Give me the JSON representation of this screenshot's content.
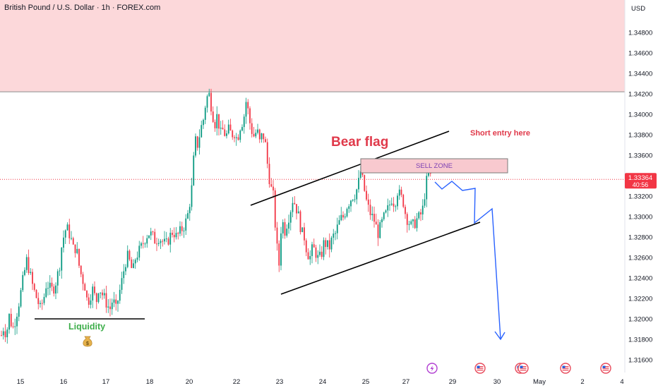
{
  "header": {
    "title": "British Pound / U.S. Dollar · 1h · FOREX.com"
  },
  "currency": "USD",
  "price_tag": {
    "price": "1.33364",
    "countdown": "40:56"
  },
  "annotations": {
    "bear_flag": "Bear flag",
    "short_entry": "Short entry here",
    "sell_zone": "SELL ZONE",
    "liquidity": "Liquidity"
  },
  "colors": {
    "up": "#089981",
    "down": "#f23645",
    "resistance_zone": "#fcd8da",
    "sell_zone_fill": "#f8c9cf",
    "projection": "#2962ff",
    "bear_flag_text": "#e0394a",
    "liquidity_text": "#3dae4a",
    "price_tag_bg": "#f23645"
  },
  "icons": {
    "liquidity": "money-bag-icon",
    "events": [
      "lightning-event-icon",
      "us-flag-event-icon",
      "us-flag-event-icon",
      "us-flag-event-icon",
      "us-flag-event-icon",
      "us-flag-event-icon"
    ]
  },
  "chart_data": {
    "type": "candlestick",
    "ylim": [
      1.3145,
      1.35
    ],
    "y_ticks": [
      "1.34800",
      "1.34600",
      "1.34400",
      "1.34200",
      "1.34000",
      "1.33800",
      "1.33600",
      "1.33200",
      "1.33000",
      "1.32800",
      "1.32600",
      "1.32400",
      "1.32200",
      "1.32000",
      "1.31800",
      "1.31600"
    ],
    "x_ticks": [
      "15",
      "16",
      "17",
      "18",
      "20",
      "22",
      "23",
      "24",
      "25",
      "27",
      "29",
      "30",
      "May",
      "2",
      "4"
    ],
    "resistance_zone": [
      1.3422,
      1.35
    ],
    "current_price": 1.33364,
    "anchors": [
      [
        0,
        1.3176
      ],
      [
        4,
        1.3192
      ],
      [
        9,
        1.3185
      ],
      [
        13,
        1.3203
      ],
      [
        18,
        1.319
      ],
      [
        22,
        1.32
      ],
      [
        28,
        1.322
      ],
      [
        33,
        1.324
      ],
      [
        38,
        1.3258
      ],
      [
        42,
        1.3245
      ],
      [
        47,
        1.323
      ],
      [
        52,
        1.322
      ],
      [
        57,
        1.321
      ],
      [
        62,
        1.322
      ],
      [
        66,
        1.3236
      ],
      [
        70,
        1.323
      ],
      [
        75,
        1.3228
      ],
      [
        79,
        1.3236
      ],
      [
        84,
        1.325
      ],
      [
        88,
        1.3275
      ],
      [
        94,
        1.329
      ],
      [
        100,
        1.328
      ],
      [
        104,
        1.3268
      ],
      [
        108,
        1.327
      ],
      [
        112,
        1.3252
      ],
      [
        116,
        1.324
      ],
      [
        120,
        1.3233
      ],
      [
        124,
        1.3215
      ],
      [
        128,
        1.3223
      ],
      [
        132,
        1.323
      ],
      [
        136,
        1.3215
      ],
      [
        140,
        1.3232
      ],
      [
        144,
        1.3225
      ],
      [
        148,
        1.322
      ],
      [
        152,
        1.3213
      ],
      [
        156,
        1.321
      ],
      [
        160,
        1.322
      ],
      [
        164,
        1.3208
      ],
      [
        168,
        1.3222
      ],
      [
        172,
        1.3235
      ],
      [
        176,
        1.325
      ],
      [
        180,
        1.3262
      ],
      [
        184,
        1.3255
      ],
      [
        188,
        1.3245
      ],
      [
        192,
        1.326
      ],
      [
        196,
        1.3265
      ],
      [
        200,
        1.327
      ],
      [
        205,
        1.3278
      ],
      [
        210,
        1.3284
      ],
      [
        215,
        1.3282
      ],
      [
        220,
        1.3276
      ],
      [
        225,
        1.328
      ],
      [
        230,
        1.3276
      ],
      [
        235,
        1.3272
      ],
      [
        240,
        1.328
      ],
      [
        245,
        1.3286
      ],
      [
        250,
        1.328
      ],
      [
        255,
        1.3285
      ],
      [
        260,
        1.329
      ],
      [
        265,
        1.3298
      ],
      [
        268,
        1.331
      ],
      [
        272,
        1.333
      ],
      [
        276,
        1.3375
      ],
      [
        280,
        1.337
      ],
      [
        284,
        1.3385
      ],
      [
        288,
        1.3395
      ],
      [
        292,
        1.3415
      ],
      [
        296,
        1.342
      ],
      [
        300,
        1.3405
      ],
      [
        304,
        1.339
      ],
      [
        308,
        1.34
      ],
      [
        312,
        1.338
      ],
      [
        316,
        1.3385
      ],
      [
        320,
        1.3378
      ],
      [
        324,
        1.3385
      ],
      [
        328,
        1.338
      ],
      [
        332,
        1.3382
      ],
      [
        336,
        1.3375
      ],
      [
        340,
        1.3388
      ],
      [
        345,
        1.3395
      ],
      [
        349,
        1.3415
      ],
      [
        353,
        1.3395
      ],
      [
        356,
        1.3385
      ],
      [
        360,
        1.3378
      ],
      [
        364,
        1.3385
      ],
      [
        368,
        1.3372
      ],
      [
        372,
        1.3382
      ],
      [
        376,
        1.337
      ],
      [
        379,
        1.335
      ],
      [
        383,
        1.333
      ],
      [
        387,
        1.332
      ],
      [
        391,
        1.328
      ],
      [
        395,
        1.325
      ],
      [
        399,
        1.33
      ],
      [
        403,
        1.3285
      ],
      [
        407,
        1.3295
      ],
      [
        411,
        1.3305
      ],
      [
        415,
        1.3318
      ],
      [
        419,
        1.331
      ],
      [
        423,
        1.33
      ],
      [
        427,
        1.3285
      ],
      [
        431,
        1.328
      ],
      [
        435,
        1.3265
      ],
      [
        439,
        1.326
      ],
      [
        443,
        1.327
      ],
      [
        447,
        1.3265
      ],
      [
        451,
        1.3258
      ],
      [
        455,
        1.3262
      ],
      [
        459,
        1.3275
      ],
      [
        463,
        1.3272
      ],
      [
        467,
        1.327
      ],
      [
        471,
        1.328
      ],
      [
        475,
        1.3283
      ],
      [
        479,
        1.3292
      ],
      [
        483,
        1.3298
      ],
      [
        487,
        1.33
      ],
      [
        491,
        1.331
      ],
      [
        495,
        1.3315
      ],
      [
        499,
        1.332
      ],
      [
        503,
        1.3322
      ],
      [
        507,
        1.333
      ],
      [
        511,
        1.3345
      ],
      [
        515,
        1.333
      ],
      [
        519,
        1.3315
      ],
      [
        523,
        1.3305
      ],
      [
        527,
        1.33
      ],
      [
        531,
        1.3295
      ],
      [
        535,
        1.3283
      ],
      [
        539,
        1.329
      ],
      [
        543,
        1.3298
      ],
      [
        547,
        1.3303
      ],
      [
        551,
        1.331
      ],
      [
        555,
        1.3318
      ],
      [
        559,
        1.3312
      ],
      [
        563,
        1.3325
      ],
      [
        567,
        1.332
      ],
      [
        571,
        1.3315
      ],
      [
        575,
        1.33
      ],
      [
        579,
        1.3295
      ],
      [
        583,
        1.329
      ],
      [
        587,
        1.3293
      ],
      [
        591,
        1.3298
      ],
      [
        595,
        1.33
      ],
      [
        599,
        1.3308
      ],
      [
        603,
        1.333
      ],
      [
        607,
        1.3345
      ],
      [
        611,
        1.3336
      ]
    ]
  }
}
